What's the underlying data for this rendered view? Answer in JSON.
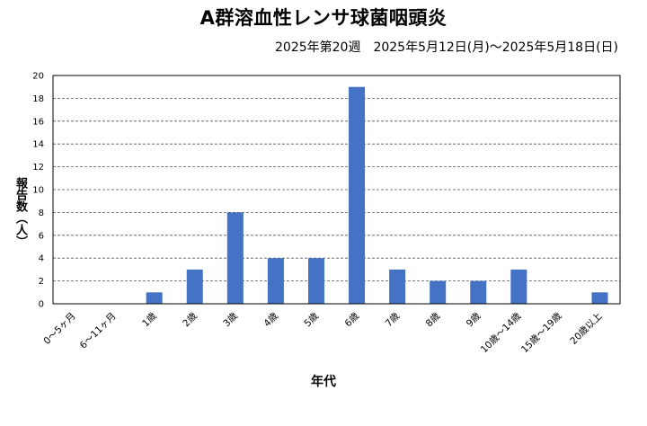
{
  "chart_data": {
    "type": "bar",
    "title": "A群溶血性レンサ球菌咽頭炎",
    "subtitle": "2025年第20週　2025年5月12日(月)～2025年5月18日(日)",
    "xlabel": "年代",
    "ylabel": "報告数（人）",
    "categories": [
      "0～5ヶ月",
      "6～11ヶ月",
      "1歳",
      "2歳",
      "3歳",
      "4歳",
      "5歳",
      "6歳",
      "7歳",
      "8歳",
      "9歳",
      "10歳～14歳",
      "15歳～19歳",
      "20歳以上"
    ],
    "values": [
      0,
      0,
      1,
      3,
      8,
      4,
      4,
      19,
      3,
      2,
      2,
      3,
      0,
      1
    ],
    "ylim": [
      0,
      20
    ],
    "yticks": [
      0,
      2,
      4,
      6,
      8,
      10,
      12,
      14,
      16,
      18,
      20
    ],
    "grid": true,
    "bar_color": "#4472c4"
  }
}
